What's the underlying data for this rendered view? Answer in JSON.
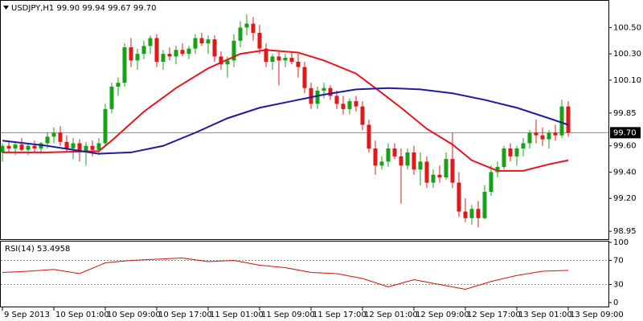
{
  "chart_data": [
    {
      "type": "candlestick",
      "title": "USDJPY,H1  99.90 99.94 99.67 99.70",
      "categories": [
        "9 Sep 2013",
        null,
        null,
        null,
        null,
        null,
        null,
        null,
        "10 Sep 01:00",
        null,
        null,
        null,
        null,
        null,
        null,
        null,
        "10 Sep 09:00",
        null,
        null,
        null,
        null,
        null,
        null,
        null,
        "10 Sep 17:00",
        null,
        null,
        null,
        null,
        null,
        null,
        null,
        "11 Sep 01:00",
        null,
        null,
        null,
        null,
        null,
        null,
        null,
        "11 Sep 09:00",
        null,
        null,
        null,
        null,
        null,
        null,
        null,
        "11 Sep 17:00",
        null,
        null,
        null,
        null,
        null,
        null,
        null,
        "12 Sep 01:00",
        null,
        null,
        null,
        null,
        null,
        null,
        null,
        "12 Sep 09:00",
        null,
        null,
        null,
        null,
        null,
        null,
        null,
        "12 Sep 17:00",
        null,
        null,
        null,
        null,
        null,
        null,
        null,
        "13 Sep 01:00",
        null,
        null,
        null,
        null,
        null,
        null,
        null,
        "13 Sep 09:00"
      ],
      "open": [
        99.55,
        99.6,
        99.58,
        99.61,
        99.57,
        99.6,
        99.58,
        99.62,
        99.67,
        99.7,
        99.63,
        99.58,
        99.62,
        99.55,
        99.6,
        99.57,
        99.62,
        99.88,
        100.05,
        100.08,
        100.35,
        100.25,
        100.3,
        100.36,
        100.42,
        100.24,
        100.3,
        100.28,
        100.33,
        100.3,
        100.34,
        100.42,
        100.38,
        100.41,
        100.28,
        100.22,
        100.25,
        100.4,
        100.5,
        100.53,
        100.46,
        100.34,
        100.24,
        100.28,
        100.25,
        100.27,
        100.24,
        100.2,
        100.04,
        99.92,
        100.02,
        100.04,
        99.98,
        99.92,
        99.88,
        99.94,
        99.9,
        99.76,
        99.58,
        99.45,
        99.48,
        99.58,
        99.52,
        99.45,
        99.55,
        99.42,
        99.48,
        99.32,
        99.38,
        99.36,
        99.5,
        99.32,
        99.1,
        99.05,
        99.12,
        99.05,
        99.25,
        99.4,
        99.44,
        99.58,
        99.52,
        99.58,
        99.62,
        99.7,
        99.68,
        99.65,
        99.7,
        99.68,
        99.9
      ],
      "high": [
        99.62,
        99.64,
        99.63,
        99.66,
        99.62,
        99.64,
        99.63,
        99.7,
        99.74,
        99.75,
        99.68,
        99.66,
        99.65,
        99.63,
        99.64,
        99.66,
        99.92,
        100.08,
        100.12,
        100.38,
        100.42,
        100.34,
        100.4,
        100.44,
        100.45,
        100.33,
        100.35,
        100.36,
        100.38,
        100.36,
        100.45,
        100.46,
        100.44,
        100.44,
        100.32,
        100.28,
        100.45,
        100.55,
        100.6,
        100.58,
        100.52,
        100.38,
        100.3,
        100.32,
        100.3,
        100.31,
        100.3,
        100.24,
        100.08,
        100.05,
        100.08,
        100.06,
        100.02,
        99.98,
        99.96,
        99.98,
        99.94,
        99.8,
        99.64,
        99.52,
        99.62,
        99.62,
        99.58,
        99.58,
        99.6,
        99.55,
        99.52,
        99.42,
        99.45,
        99.55,
        99.7,
        99.4,
        99.2,
        99.15,
        99.18,
        99.3,
        99.45,
        99.48,
        99.6,
        99.62,
        99.6,
        99.66,
        99.72,
        99.8,
        99.74,
        99.72,
        99.76,
        99.95,
        99.94
      ],
      "low": [
        99.48,
        99.55,
        99.53,
        99.56,
        99.53,
        99.55,
        99.54,
        99.58,
        99.62,
        99.6,
        99.55,
        99.5,
        99.48,
        99.45,
        99.52,
        99.53,
        99.6,
        99.85,
        99.98,
        100.05,
        100.2,
        100.18,
        100.26,
        100.3,
        100.2,
        100.18,
        100.25,
        100.22,
        100.28,
        100.26,
        100.3,
        100.36,
        100.3,
        100.24,
        100.18,
        100.12,
        100.2,
        100.35,
        100.44,
        100.4,
        100.3,
        100.2,
        100.18,
        100.06,
        100.2,
        100.22,
        100.12,
        100.0,
        99.88,
        99.88,
        99.96,
        99.95,
        99.88,
        99.84,
        99.84,
        99.86,
        99.72,
        99.55,
        99.38,
        99.42,
        99.44,
        99.5,
        99.16,
        99.42,
        99.38,
        99.3,
        99.28,
        99.28,
        99.32,
        99.34,
        99.28,
        99.06,
        99.02,
        99.0,
        98.98,
        99.04,
        99.22,
        99.36,
        99.42,
        99.48,
        99.45,
        99.52,
        99.58,
        99.62,
        99.6,
        99.58,
        99.64,
        99.66,
        99.67
      ],
      "close": [
        99.6,
        99.58,
        99.61,
        99.57,
        99.6,
        99.58,
        99.62,
        99.67,
        99.7,
        99.63,
        99.58,
        99.62,
        99.55,
        99.6,
        99.57,
        99.62,
        99.88,
        100.05,
        100.08,
        100.35,
        100.25,
        100.3,
        100.36,
        100.42,
        100.24,
        100.3,
        100.28,
        100.33,
        100.3,
        100.34,
        100.42,
        100.38,
        100.41,
        100.28,
        100.22,
        100.25,
        100.4,
        100.5,
        100.53,
        100.46,
        100.34,
        100.24,
        100.28,
        100.25,
        100.27,
        100.24,
        100.2,
        100.04,
        99.92,
        100.02,
        100.04,
        99.98,
        99.92,
        99.88,
        99.94,
        99.9,
        99.76,
        99.58,
        99.45,
        99.48,
        99.58,
        99.52,
        99.45,
        99.55,
        99.42,
        99.48,
        99.32,
        99.38,
        99.36,
        99.5,
        99.32,
        99.1,
        99.05,
        99.12,
        99.05,
        99.25,
        99.4,
        99.44,
        99.58,
        99.52,
        99.58,
        99.62,
        99.7,
        99.68,
        99.65,
        99.7,
        99.68,
        99.9,
        99.7
      ],
      "up_color": "#19a019",
      "down_color": "#e01818",
      "overlays": [
        {
          "color": "#e8141e",
          "x": [
            0,
            7,
            15,
            17,
            22,
            27,
            32,
            37,
            41,
            46,
            50,
            55,
            58,
            62,
            66,
            70,
            73,
            77,
            81,
            85,
            88
          ],
          "values": [
            99.55,
            99.55,
            99.56,
            99.64,
            99.86,
            100.04,
            100.19,
            100.3,
            100.33,
            100.31,
            100.25,
            100.15,
            100.04,
            99.89,
            99.73,
            99.61,
            99.49,
            99.41,
            99.41,
            99.46,
            99.49
          ]
        },
        {
          "color": "#1c1ca0",
          "x": [
            0,
            7,
            15,
            20,
            25,
            30,
            35,
            40,
            45,
            50,
            55,
            60,
            65,
            70,
            75,
            80,
            85,
            88
          ],
          "values": [
            99.64,
            99.6,
            99.54,
            99.55,
            99.6,
            99.7,
            99.81,
            99.89,
            99.94,
            99.99,
            100.03,
            100.04,
            100.03,
            100.0,
            99.95,
            99.89,
            99.81,
            99.76
          ]
        }
      ],
      "last_price": {
        "value": 99.7,
        "label": "99.70"
      },
      "ylim": [
        98.89,
        100.71
      ],
      "yticks": [
        98.95,
        {
          "value": 99.2,
          "label": "99.20"
        },
        {
          "value": 99.4,
          "label": "99.40"
        },
        {
          "value": 99.6,
          "label": "99.60"
        },
        99.85,
        {
          "value": 100.1,
          "label": "100.10"
        },
        {
          "value": 100.3,
          "label": "100.30"
        },
        {
          "value": 100.5,
          "label": "100.50"
        }
      ],
      "grid": false
    },
    {
      "type": "line",
      "title": "RSI(14) 53.4958",
      "color": "#d01010",
      "x": [
        0,
        4,
        8,
        12,
        16,
        20,
        24,
        28,
        32,
        36,
        40,
        44,
        48,
        52,
        56,
        60,
        64,
        68,
        72,
        76,
        80,
        84,
        88
      ],
      "values": [
        50,
        52,
        55,
        48,
        66,
        70,
        72,
        74,
        68,
        70,
        62,
        58,
        50,
        48,
        40,
        26,
        38,
        30,
        22,
        35,
        45,
        52,
        53.4958
      ],
      "ylim": [
        0,
        100
      ],
      "yticks": [
        100,
        70,
        30,
        0
      ]
    }
  ]
}
